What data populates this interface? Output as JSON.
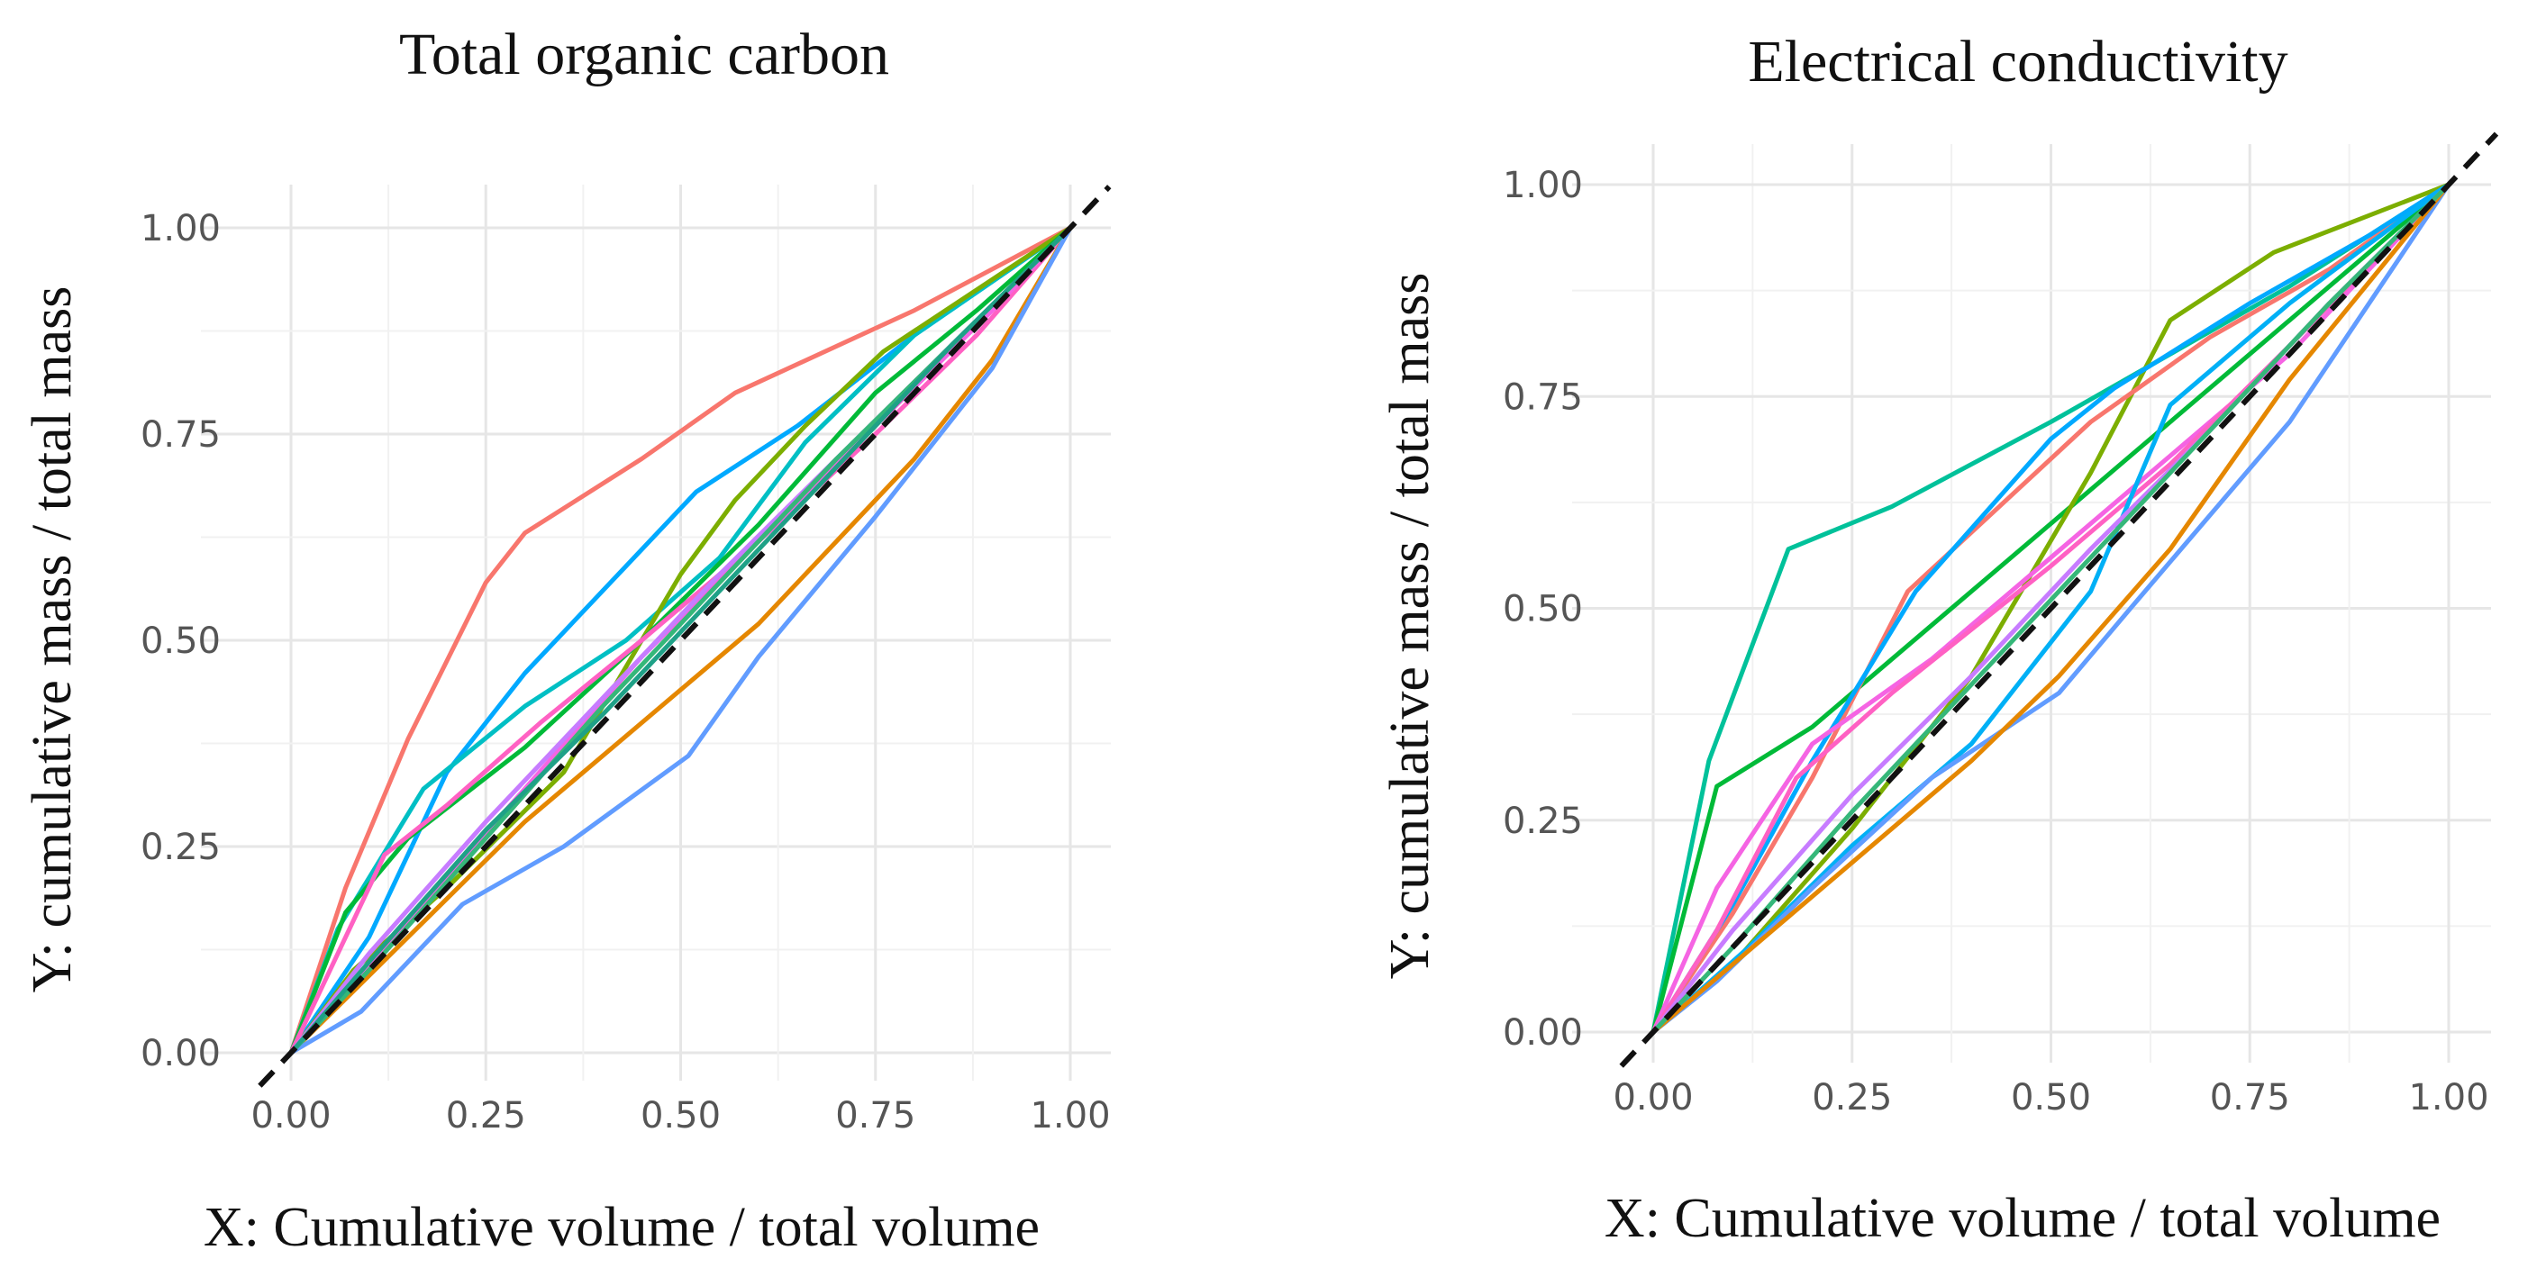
{
  "chart_data": [
    {
      "type": "line",
      "title": "Total organic carbon",
      "xlabel": "X: Cumulative volume / total volume",
      "ylabel": "Y: cumulative mass / total mass",
      "xlim": [
        0,
        1
      ],
      "ylim": [
        0,
        1
      ],
      "x_ticks": [
        "0.00",
        "0.25",
        "0.50",
        "0.75",
        "1.00"
      ],
      "y_ticks": [
        "0.00",
        "0.25",
        "0.50",
        "0.75",
        "1.00"
      ],
      "grid": true,
      "reference_line": {
        "style": "dashed",
        "color": "#000000",
        "x": [
          -0.04,
          1.05
        ],
        "y": [
          -0.04,
          1.05
        ]
      },
      "series": [
        {
          "color": "#F8766D",
          "x": [
            0,
            0.07,
            0.15,
            0.25,
            0.3,
            0.45,
            0.57,
            0.8,
            1.0
          ],
          "y": [
            0,
            0.2,
            0.38,
            0.57,
            0.63,
            0.72,
            0.8,
            0.9,
            1.0
          ]
        },
        {
          "color": "#00A9FF",
          "x": [
            0,
            0.1,
            0.2,
            0.3,
            0.42,
            0.52,
            0.65,
            0.8,
            1.0
          ],
          "y": [
            0,
            0.14,
            0.34,
            0.46,
            0.58,
            0.68,
            0.76,
            0.87,
            1.0
          ]
        },
        {
          "color": "#00BFC4",
          "x": [
            0,
            0.06,
            0.17,
            0.3,
            0.43,
            0.55,
            0.66,
            0.8,
            1.0
          ],
          "y": [
            0,
            0.15,
            0.32,
            0.42,
            0.5,
            0.6,
            0.74,
            0.87,
            1.0
          ]
        },
        {
          "color": "#7CAE00",
          "x": [
            0,
            0.08,
            0.2,
            0.35,
            0.5,
            0.57,
            0.66,
            0.76,
            1.0
          ],
          "y": [
            0,
            0.1,
            0.2,
            0.34,
            0.58,
            0.67,
            0.76,
            0.85,
            1.0
          ]
        },
        {
          "color": "#00BA38",
          "x": [
            0,
            0.07,
            0.15,
            0.3,
            0.45,
            0.6,
            0.75,
            0.88,
            1.0
          ],
          "y": [
            0,
            0.17,
            0.26,
            0.37,
            0.5,
            0.64,
            0.8,
            0.9,
            1.0
          ]
        },
        {
          "color": "#FF61C3",
          "x": [
            0,
            0.12,
            0.2,
            0.32,
            0.45,
            0.6,
            0.75,
            0.88,
            1.0
          ],
          "y": [
            0,
            0.24,
            0.3,
            0.4,
            0.5,
            0.62,
            0.75,
            0.87,
            1.0
          ]
        },
        {
          "color": "#F564E3",
          "x": [
            0,
            0.15,
            0.3,
            0.45,
            0.6,
            0.75,
            0.9,
            1.0
          ],
          "y": [
            0,
            0.16,
            0.32,
            0.48,
            0.62,
            0.76,
            0.9,
            1.0
          ]
        },
        {
          "color": "#E58700",
          "x": [
            0,
            0.15,
            0.3,
            0.45,
            0.6,
            0.68,
            0.8,
            0.9,
            1.0
          ],
          "y": [
            0,
            0.14,
            0.28,
            0.4,
            0.52,
            0.6,
            0.72,
            0.84,
            1.0
          ]
        },
        {
          "color": "#619CFF",
          "x": [
            0,
            0.09,
            0.22,
            0.35,
            0.51,
            0.6,
            0.75,
            0.9,
            1.0
          ],
          "y": [
            0,
            0.05,
            0.18,
            0.25,
            0.36,
            0.48,
            0.65,
            0.83,
            1.0
          ]
        },
        {
          "color": "#C77CFF",
          "x": [
            0,
            0.1,
            0.25,
            0.4,
            0.55,
            0.7,
            0.85,
            1.0
          ],
          "y": [
            0,
            0.12,
            0.28,
            0.43,
            0.58,
            0.72,
            0.86,
            1.0
          ]
        },
        {
          "color": "#35B779",
          "x": [
            0,
            0.1,
            0.25,
            0.4,
            0.55,
            0.7,
            0.85,
            1.0
          ],
          "y": [
            0,
            0.1,
            0.26,
            0.42,
            0.57,
            0.72,
            0.86,
            1.0
          ]
        },
        {
          "color": "#1FA187",
          "x": [
            0,
            0.1,
            0.25,
            0.4,
            0.55,
            0.7,
            0.85,
            1.0
          ],
          "y": [
            0,
            0.11,
            0.27,
            0.41,
            0.56,
            0.71,
            0.86,
            1.0
          ]
        }
      ]
    },
    {
      "type": "line",
      "title": "Electrical conductivity",
      "xlabel": "X: Cumulative volume / total volume",
      "ylabel": "Y: cumulative mass / total mass",
      "xlim": [
        0,
        1
      ],
      "ylim": [
        0,
        1
      ],
      "x_ticks": [
        "0.00",
        "0.25",
        "0.50",
        "0.75",
        "1.00"
      ],
      "y_ticks": [
        "0.00",
        "0.25",
        "0.50",
        "0.75",
        "1.00"
      ],
      "grid": true,
      "reference_line": {
        "style": "dashed",
        "color": "#000000",
        "x": [
          -0.04,
          1.06
        ],
        "y": [
          -0.04,
          1.06
        ]
      },
      "series": [
        {
          "color": "#00C19A",
          "x": [
            0,
            0.07,
            0.17,
            0.3,
            0.5,
            0.65,
            0.8,
            1.0
          ],
          "y": [
            0,
            0.32,
            0.57,
            0.62,
            0.72,
            0.8,
            0.88,
            1.0
          ]
        },
        {
          "color": "#00BA38",
          "x": [
            0,
            0.08,
            0.2,
            0.35,
            0.5,
            0.65,
            0.8,
            1.0
          ],
          "y": [
            0,
            0.29,
            0.36,
            0.48,
            0.6,
            0.72,
            0.84,
            1.0
          ]
        },
        {
          "color": "#7CAE00",
          "x": [
            0,
            0.1,
            0.25,
            0.4,
            0.55,
            0.65,
            0.78,
            1.0
          ],
          "y": [
            0,
            0.08,
            0.24,
            0.42,
            0.66,
            0.84,
            0.92,
            1.0
          ]
        },
        {
          "color": "#F8766D",
          "x": [
            0,
            0.1,
            0.2,
            0.32,
            0.55,
            0.7,
            0.85,
            1.0
          ],
          "y": [
            0,
            0.14,
            0.3,
            0.52,
            0.72,
            0.82,
            0.9,
            1.0
          ]
        },
        {
          "color": "#00A9FF",
          "x": [
            0,
            0.1,
            0.2,
            0.33,
            0.5,
            0.58,
            0.75,
            0.9,
            1.0
          ],
          "y": [
            0,
            0.15,
            0.32,
            0.52,
            0.7,
            0.76,
            0.86,
            0.94,
            1.0
          ]
        },
        {
          "color": "#F564E3",
          "x": [
            0,
            0.08,
            0.2,
            0.35,
            0.5,
            0.65,
            0.8,
            1.0
          ],
          "y": [
            0,
            0.17,
            0.34,
            0.44,
            0.56,
            0.68,
            0.8,
            1.0
          ]
        },
        {
          "color": "#FF61C3",
          "x": [
            0,
            0.08,
            0.18,
            0.3,
            0.5,
            0.65,
            0.8,
            1.0
          ],
          "y": [
            0,
            0.12,
            0.3,
            0.4,
            0.55,
            0.67,
            0.81,
            1.0
          ]
        },
        {
          "color": "#00B0F6",
          "x": [
            0,
            0.12,
            0.25,
            0.4,
            0.55,
            0.65,
            0.8,
            1.0
          ],
          "y": [
            0,
            0.1,
            0.22,
            0.34,
            0.52,
            0.74,
            0.86,
            1.0
          ]
        },
        {
          "color": "#619CFF",
          "x": [
            0,
            0.08,
            0.2,
            0.35,
            0.51,
            0.6,
            0.8,
            1.0
          ],
          "y": [
            0,
            0.06,
            0.17,
            0.3,
            0.4,
            0.5,
            0.72,
            1.0
          ]
        },
        {
          "color": "#E58700",
          "x": [
            0,
            0.1,
            0.25,
            0.4,
            0.51,
            0.65,
            0.8,
            1.0
          ],
          "y": [
            0,
            0.08,
            0.2,
            0.32,
            0.42,
            0.57,
            0.77,
            1.0
          ]
        },
        {
          "color": "#C77CFF",
          "x": [
            0,
            0.1,
            0.25,
            0.4,
            0.55,
            0.7,
            0.85,
            1.0
          ],
          "y": [
            0,
            0.12,
            0.28,
            0.42,
            0.57,
            0.71,
            0.86,
            1.0
          ]
        },
        {
          "color": "#35B779",
          "x": [
            0,
            0.1,
            0.25,
            0.4,
            0.55,
            0.7,
            0.85,
            1.0
          ],
          "y": [
            0,
            0.1,
            0.26,
            0.41,
            0.56,
            0.71,
            0.86,
            1.0
          ]
        }
      ]
    }
  ]
}
